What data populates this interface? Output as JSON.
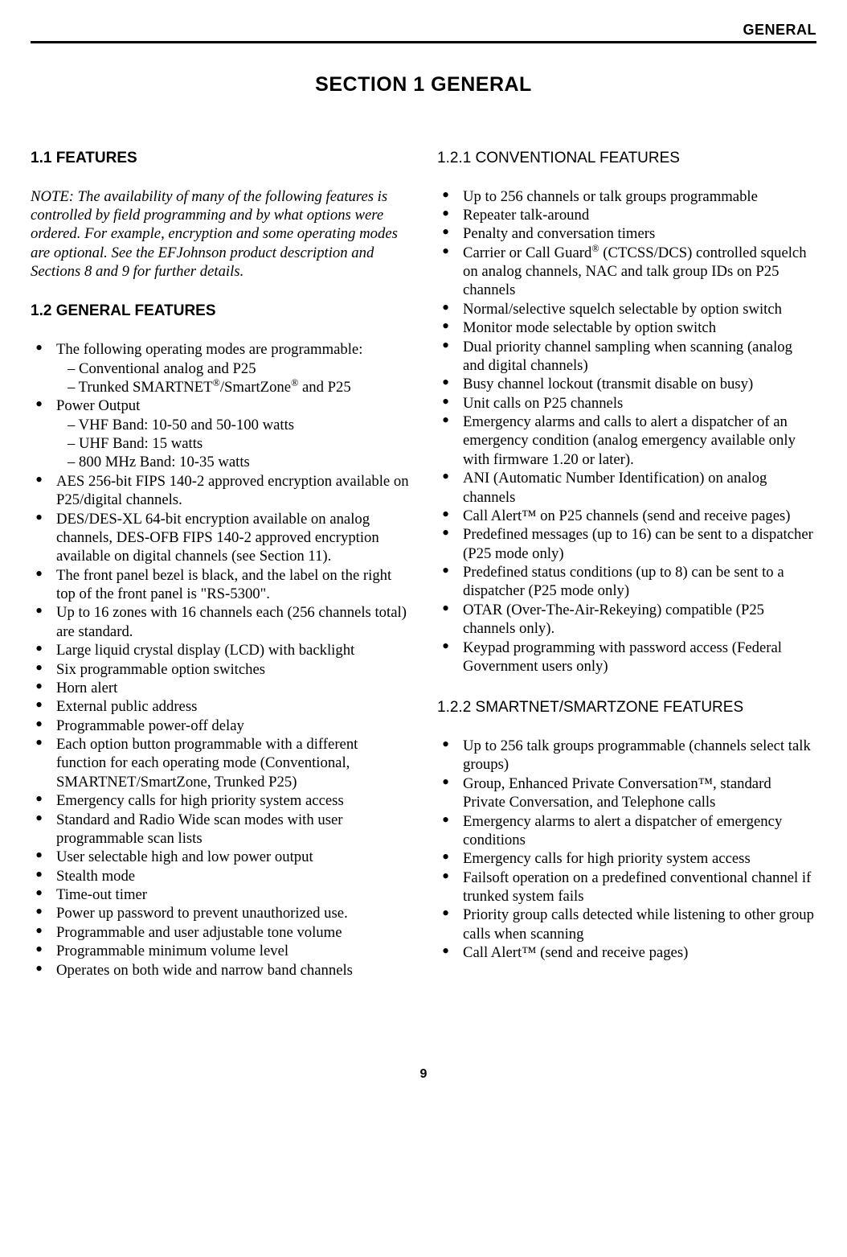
{
  "running_head": "GENERAL",
  "section_title": "SECTION 1   GENERAL",
  "page_number": "9",
  "s11": {
    "heading": "1.1 FEATURES",
    "note": "NOTE: The availability of many of the following features is controlled by field programming and by what options were ordered. For example, encryption and some operating modes are optional. See the EFJohnson product description and Sections 8 and 9 for further details."
  },
  "s12": {
    "heading": "1.2 GENERAL FEATURES",
    "items": [
      {
        "text": "The following operating modes are programmable:",
        "subs": [
          "– Conventional analog and P25",
          "– Trunked SMARTNET®/SmartZone® and P25"
        ],
        "sup_after": [
          "SMARTNET",
          "SmartZone"
        ]
      },
      {
        "text": "Power Output",
        "subs": [
          "– VHF Band: 10-50 and 50-100 watts",
          "– UHF Band: 15 watts",
          "– 800 MHz Band: 10-35 watts"
        ]
      },
      {
        "text": "AES 256-bit FIPS 140-2 approved encryption available on P25/digital channels."
      },
      {
        "text": "DES/DES-XL 64-bit encryption available on analog channels, DES-OFB FIPS 140-2 approved encryption available on digital channels (see Section 11)."
      },
      {
        "text": "The front panel bezel is black, and the label on the right top of the front panel is \"RS-5300\"."
      },
      {
        "text": "Up to 16 zones with 16 channels each (256 channels total) are standard."
      },
      {
        "text": "Large liquid crystal display (LCD) with backlight"
      },
      {
        "text": "Six programmable option switches"
      },
      {
        "text": "Horn alert"
      },
      {
        "text": "External public address"
      },
      {
        "text": "Programmable power-off delay"
      },
      {
        "text": "Each option button programmable with a different function for each operating mode (Conventional, SMARTNET/SmartZone, Trunked P25)"
      },
      {
        "text": "Emergency calls for high priority system access"
      },
      {
        "text": "Standard and Radio Wide scan modes with user programmable scan lists"
      },
      {
        "text": "User selectable high and low power output"
      },
      {
        "text": "Stealth mode"
      },
      {
        "text": "Time-out timer"
      },
      {
        "text": "Power up password to prevent unauthorized use."
      },
      {
        "text": "Programmable and user adjustable tone volume"
      },
      {
        "text": "Programmable minimum volume level"
      },
      {
        "text": "Operates on both wide and narrow band channels"
      }
    ]
  },
  "s121": {
    "heading": "1.2.1  CONVENTIONAL FEATURES",
    "items": [
      "Up to 256 channels or talk groups programmable",
      "Repeater talk-around",
      "Penalty and conversation timers",
      "Carrier or Call Guard® (CTCSS/DCS) controlled squelch on analog channels, NAC and talk group IDs on P25 channels",
      "Normal/selective squelch selectable by option switch",
      "Monitor mode selectable by option switch",
      "Dual priority channel sampling when scanning (analog and digital channels)",
      "Busy channel lockout (transmit disable on busy)",
      "Unit calls on P25 channels",
      "Emergency alarms and calls to alert a dispatcher of an emergency condition (analog emergency available only with firmware 1.20 or later).",
      "ANI (Automatic Number Identification) on analog channels",
      "Call Alert™ on P25 channels (send and receive pages)",
      "Predefined messages (up to 16) can be sent to a dispatcher (P25 mode only)",
      "Predefined status conditions (up to 8) can be sent to a dispatcher (P25 mode only)",
      "OTAR (Over-The-Air-Rekeying) compatible (P25 channels only).",
      "Keypad programming with password access (Federal Government users only)"
    ]
  },
  "s122": {
    "heading": "1.2.2  SMARTNET/SMARTZONE FEATURES",
    "items": [
      "Up to 256 talk groups programmable (channels select talk groups)",
      "Group, Enhanced Private Conversation™, standard Private Conversation, and Telephone calls",
      "Emergency alarms to alert a dispatcher of emergency conditions",
      "Emergency calls for high priority system access",
      "Failsoft operation on a predefined conventional channel if trunked system fails",
      "Priority group calls detected while listening to other group calls when scanning",
      "Call Alert™ (send and receive pages)"
    ]
  }
}
